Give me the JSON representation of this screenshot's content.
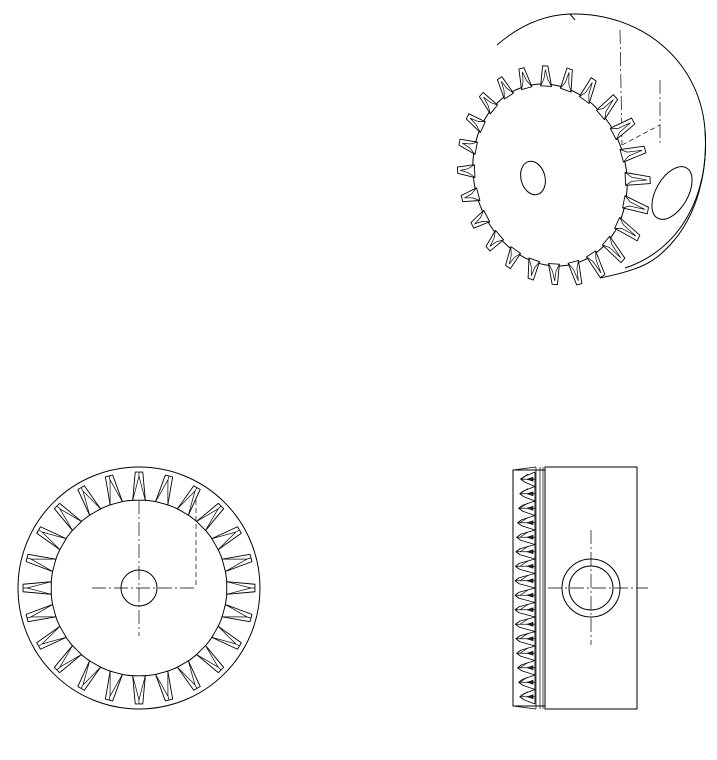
{
  "drawing": {
    "line_color": "#000000",
    "background": "#ffffff",
    "views": [
      {
        "name": "isometric-view",
        "teeth": 24
      },
      {
        "name": "front-view",
        "teeth": 24
      },
      {
        "name": "side-view",
        "teeth": 24
      }
    ]
  }
}
